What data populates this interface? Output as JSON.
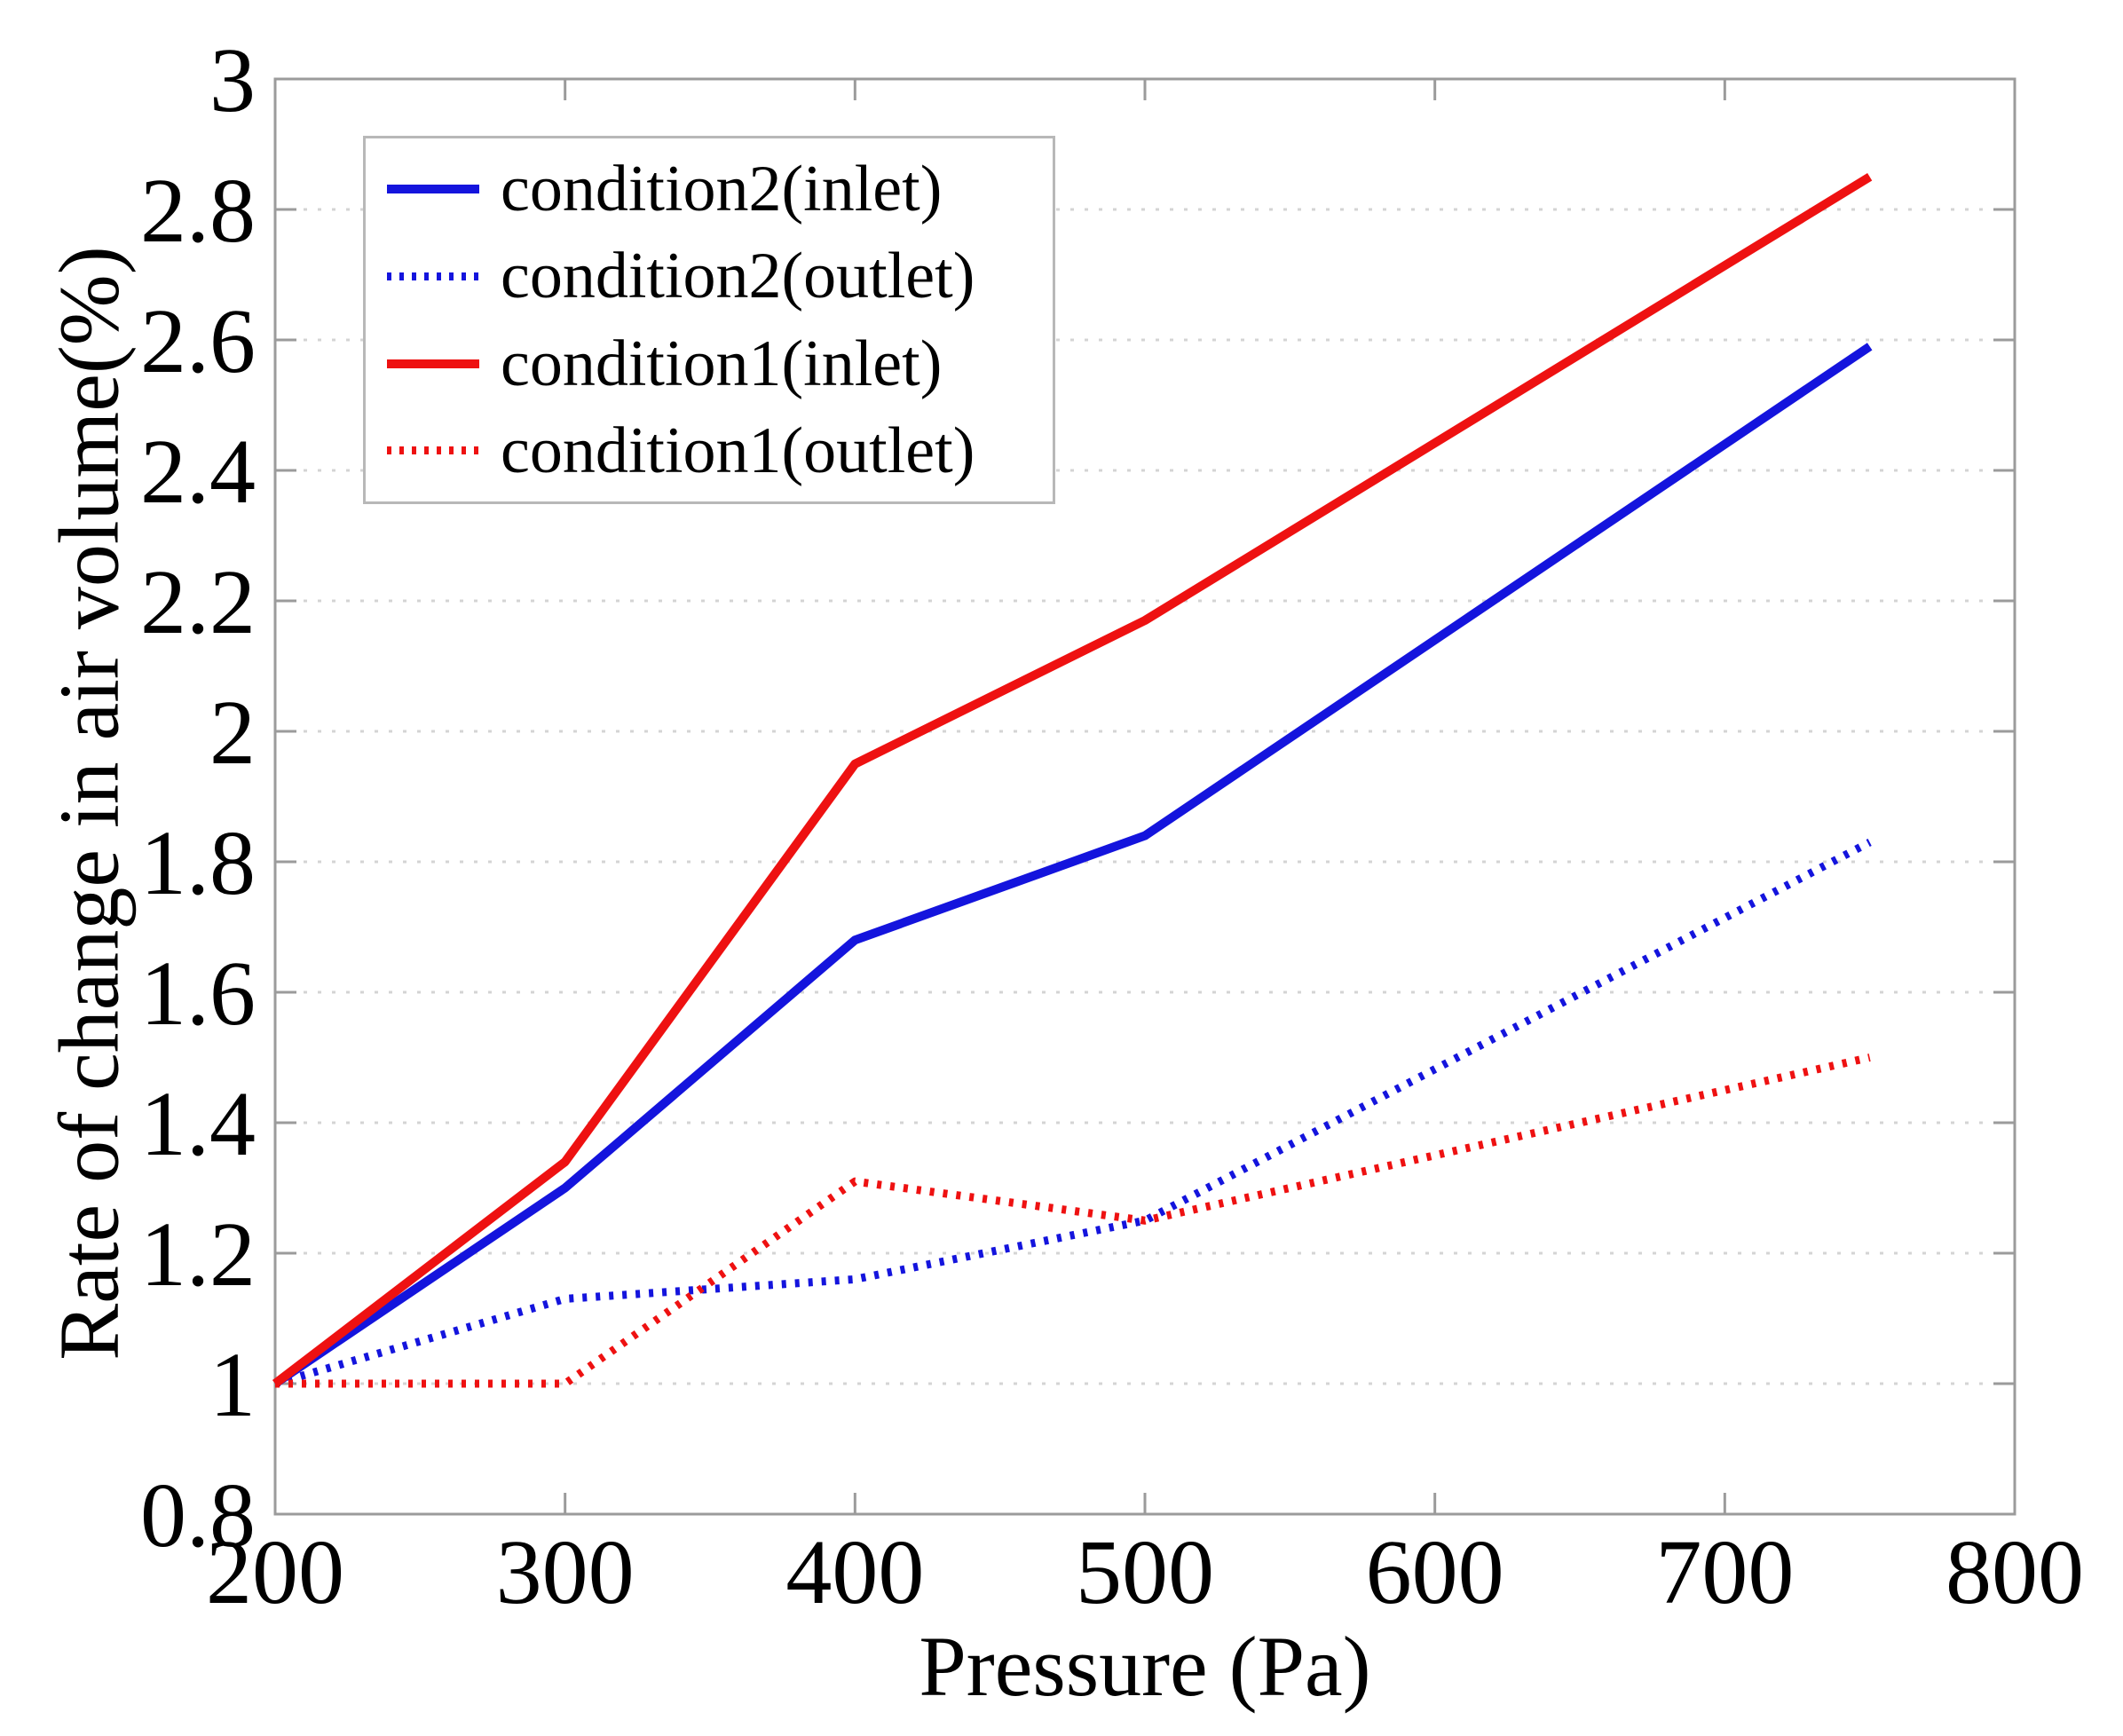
{
  "chart_data": {
    "type": "line",
    "title": "",
    "xlabel": "Pressure (Pa)",
    "ylabel": "Rate of change in air volume(%)",
    "x": [
      200,
      300,
      400,
      500,
      750
    ],
    "series": [
      {
        "name": "condition2(inlet)",
        "color": "#1414dd",
        "style": "solid",
        "values": [
          1.0,
          1.3,
          1.68,
          1.84,
          2.59
        ]
      },
      {
        "name": "condition2(outlet)",
        "color": "#1414dd",
        "style": "dotted",
        "values": [
          1.0,
          1.13,
          1.16,
          1.25,
          1.83
        ]
      },
      {
        "name": "condition1(inlet)",
        "color": "#ee1111",
        "style": "solid",
        "values": [
          1.0,
          1.34,
          1.95,
          2.17,
          2.85
        ]
      },
      {
        "name": "condition1(outlet)",
        "color": "#ee1111",
        "style": "dotted",
        "values": [
          1.0,
          1.0,
          1.31,
          1.25,
          1.5
        ]
      }
    ],
    "xlim": [
      200,
      800
    ],
    "ylim": [
      0.8,
      3.0
    ],
    "xticks": [
      200,
      300,
      400,
      500,
      600,
      700,
      800
    ],
    "yticks": [
      0.8,
      1,
      1.2,
      1.4,
      1.6,
      1.8,
      2,
      2.2,
      2.4,
      2.6,
      2.8,
      3
    ],
    "grid": "horizontal-dotted",
    "legend_position": "top-left"
  },
  "style": {
    "axis_color": "#9b9b9b",
    "grid_color": "#d4d4d4",
    "tick_label_color": "#000000",
    "background": "#ffffff"
  }
}
